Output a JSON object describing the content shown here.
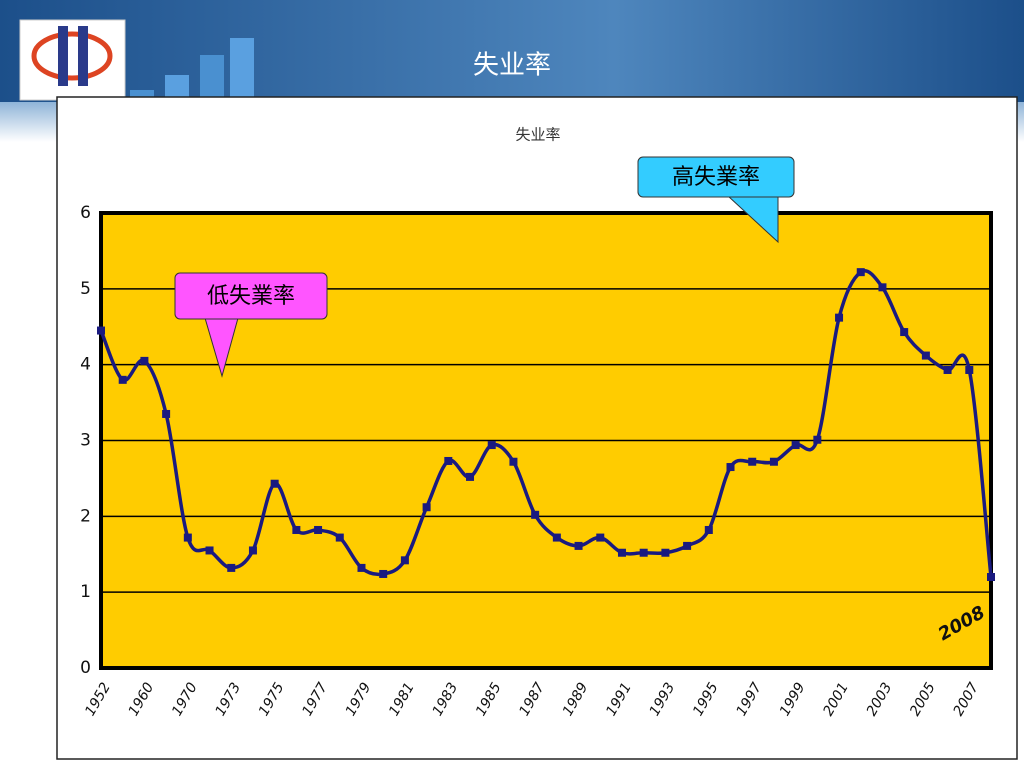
{
  "header": {
    "title": "失业率"
  },
  "chart_data": {
    "type": "line",
    "title": "失业率",
    "categories": [
      "1952",
      null,
      "1960",
      null,
      "1970",
      null,
      "1973",
      null,
      "1975",
      null,
      "1977",
      null,
      "1979",
      null,
      "1981",
      null,
      "1983",
      null,
      "1985",
      null,
      "1987",
      null,
      "1989",
      null,
      "1991",
      null,
      "1993",
      null,
      "1995",
      null,
      "1997",
      null,
      "1999",
      null,
      "2001",
      null,
      "2003",
      null,
      "2005",
      null,
      "2007",
      null
    ],
    "series": [
      {
        "name": "失业率",
        "color": "#1a1a80",
        "values": [
          4.45,
          3.8,
          4.05,
          3.35,
          1.72,
          1.55,
          1.32,
          1.55,
          2.43,
          1.82,
          1.82,
          1.72,
          1.32,
          1.24,
          1.42,
          2.12,
          2.73,
          2.52,
          2.94,
          2.72,
          2.02,
          1.72,
          1.61,
          1.72,
          1.52,
          1.52,
          1.52,
          1.61,
          1.82,
          2.65,
          2.72,
          2.72,
          2.94,
          3.01,
          4.62,
          5.22,
          5.02,
          4.43,
          4.12,
          3.93,
          3.93,
          1.2
        ]
      }
    ],
    "ylim": [
      0,
      6
    ],
    "yticks": [
      0,
      1,
      2,
      3,
      4,
      5,
      6
    ],
    "grid": true,
    "smooth": true,
    "plot_color": "#ffcc00",
    "annotations": {
      "high": "高失業率",
      "low": "低失業率",
      "last_point": "2008"
    }
  }
}
